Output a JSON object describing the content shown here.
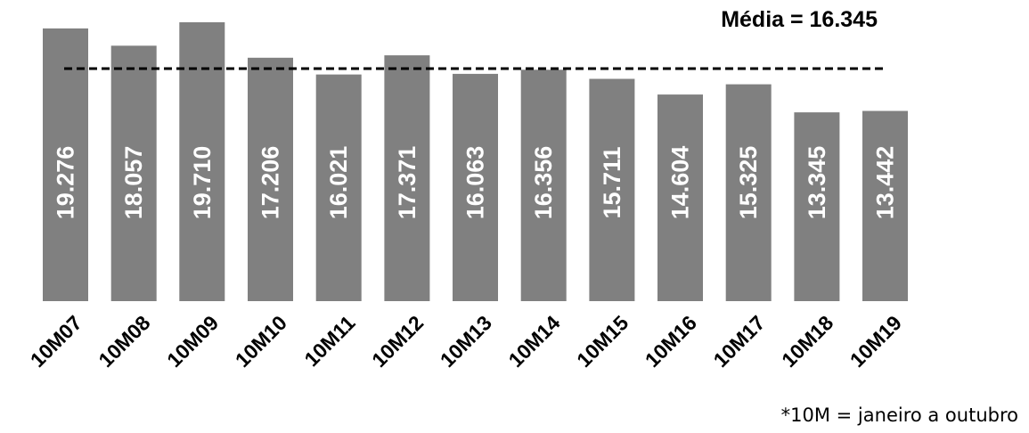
{
  "chart_data": {
    "type": "bar",
    "categories": [
      "10M07",
      "10M08",
      "10M09",
      "10M10",
      "10M11",
      "10M12",
      "10M13",
      "10M14",
      "10M15",
      "10M16",
      "10M17",
      "10M18",
      "10M19"
    ],
    "values": [
      19276,
      18057,
      19710,
      17206,
      16021,
      17371,
      16063,
      16356,
      15711,
      14604,
      15325,
      13345,
      13442
    ],
    "value_labels": [
      "19.276",
      "18.057",
      "19.710",
      "17.206",
      "16.021",
      "17.371",
      "16.063",
      "16.356",
      "15.711",
      "14.604",
      "15.325",
      "13.345",
      "13.442"
    ],
    "average": 16345,
    "average_label": "Média = 16.345",
    "footnote": "*10M = janeiro a outubro",
    "bar_color": "#808080",
    "label_color": "#ffffff",
    "reference_line_color": "#000000",
    "reference_line_style": "dashed",
    "title": "",
    "xlabel": "",
    "ylabel": ""
  }
}
